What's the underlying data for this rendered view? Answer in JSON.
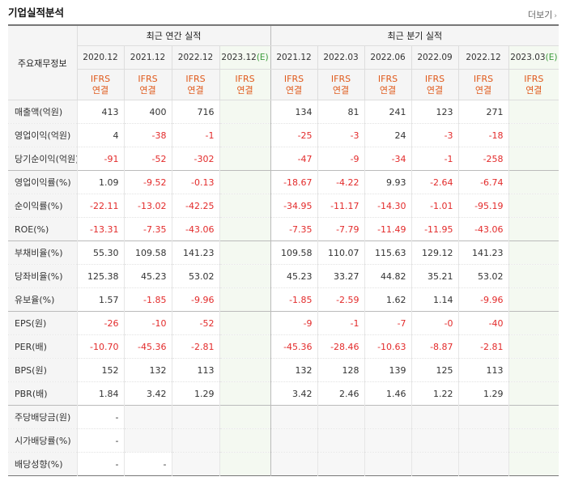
{
  "title": "기업실적분석",
  "more_label": "더보기",
  "header": {
    "label": "주요재무정보",
    "annual_label": "최근 연간 실적",
    "quarter_label": "최근 분기 실적",
    "annual_periods": [
      "2020.12",
      "2021.12",
      "2022.12",
      "2023.12(E)"
    ],
    "quarter_periods": [
      "2021.12",
      "2022.03",
      "2022.06",
      "2022.09",
      "2022.12",
      "2023.03(E)"
    ],
    "standard_line1": "IFRS",
    "standard_line2": "연결"
  },
  "rows": [
    {
      "label": "매출액(억원)",
      "annual": [
        "413",
        "400",
        "716",
        ""
      ],
      "quarter": [
        "134",
        "81",
        "241",
        "123",
        "271",
        ""
      ]
    },
    {
      "label": "영업이익(억원)",
      "annual": [
        "4",
        "-38",
        "-1",
        ""
      ],
      "quarter": [
        "-25",
        "-3",
        "24",
        "-3",
        "-18",
        ""
      ]
    },
    {
      "label": "당기순이익(억원)",
      "annual": [
        "-91",
        "-52",
        "-302",
        ""
      ],
      "quarter": [
        "-47",
        "-9",
        "-34",
        "-1",
        "-258",
        ""
      ]
    },
    {
      "label": "영업이익률(%)",
      "annual": [
        "1.09",
        "-9.52",
        "-0.13",
        ""
      ],
      "quarter": [
        "-18.67",
        "-4.22",
        "9.93",
        "-2.64",
        "-6.74",
        ""
      ]
    },
    {
      "label": "순이익률(%)",
      "annual": [
        "-22.11",
        "-13.02",
        "-42.25",
        ""
      ],
      "quarter": [
        "-34.95",
        "-11.17",
        "-14.30",
        "-1.01",
        "-95.19",
        ""
      ]
    },
    {
      "label": "ROE(%)",
      "annual": [
        "-13.31",
        "-7.35",
        "-43.06",
        ""
      ],
      "quarter": [
        "-7.35",
        "-7.79",
        "-11.49",
        "-11.95",
        "-43.06",
        ""
      ]
    },
    {
      "label": "부채비율(%)",
      "annual": [
        "55.30",
        "109.58",
        "141.23",
        ""
      ],
      "quarter": [
        "109.58",
        "110.07",
        "115.63",
        "129.12",
        "141.23",
        ""
      ]
    },
    {
      "label": "당좌비율(%)",
      "annual": [
        "125.38",
        "45.23",
        "53.02",
        ""
      ],
      "quarter": [
        "45.23",
        "33.27",
        "44.82",
        "35.21",
        "53.02",
        ""
      ]
    },
    {
      "label": "유보율(%)",
      "annual": [
        "1.57",
        "-1.85",
        "-9.96",
        ""
      ],
      "quarter": [
        "-1.85",
        "-2.59",
        "1.62",
        "1.14",
        "-9.96",
        ""
      ]
    },
    {
      "label": "EPS(원)",
      "annual": [
        "-26",
        "-10",
        "-52",
        ""
      ],
      "quarter": [
        "-9",
        "-1",
        "-7",
        "-0",
        "-40",
        ""
      ]
    },
    {
      "label": "PER(배)",
      "annual": [
        "-10.70",
        "-45.36",
        "-2.81",
        ""
      ],
      "quarter": [
        "-45.36",
        "-28.46",
        "-10.63",
        "-8.87",
        "-2.81",
        ""
      ]
    },
    {
      "label": "BPS(원)",
      "annual": [
        "152",
        "132",
        "113",
        ""
      ],
      "quarter": [
        "132",
        "128",
        "139",
        "125",
        "113",
        ""
      ]
    },
    {
      "label": "PBR(배)",
      "annual": [
        "1.84",
        "3.42",
        "1.29",
        ""
      ],
      "quarter": [
        "3.42",
        "2.46",
        "1.46",
        "1.22",
        "1.29",
        ""
      ]
    },
    {
      "label": "주당배당금(원)",
      "annual": [
        "-",
        null,
        null,
        ""
      ],
      "quarter": [
        null,
        null,
        null,
        null,
        null,
        null
      ]
    },
    {
      "label": "시가배당률(%)",
      "annual": [
        "-",
        null,
        null,
        ""
      ],
      "quarter": [
        null,
        null,
        null,
        null,
        null,
        null
      ]
    },
    {
      "label": "배당성향(%)",
      "annual": [
        "-",
        "-",
        null,
        ""
      ],
      "quarter": [
        null,
        null,
        null,
        null,
        null,
        null
      ]
    }
  ],
  "colors": {
    "negative": "#e32b2b",
    "ifrs": "#e05a1c",
    "estimate_text": "#3a9a3a",
    "estimate_bg": "#f4f9f1"
  }
}
